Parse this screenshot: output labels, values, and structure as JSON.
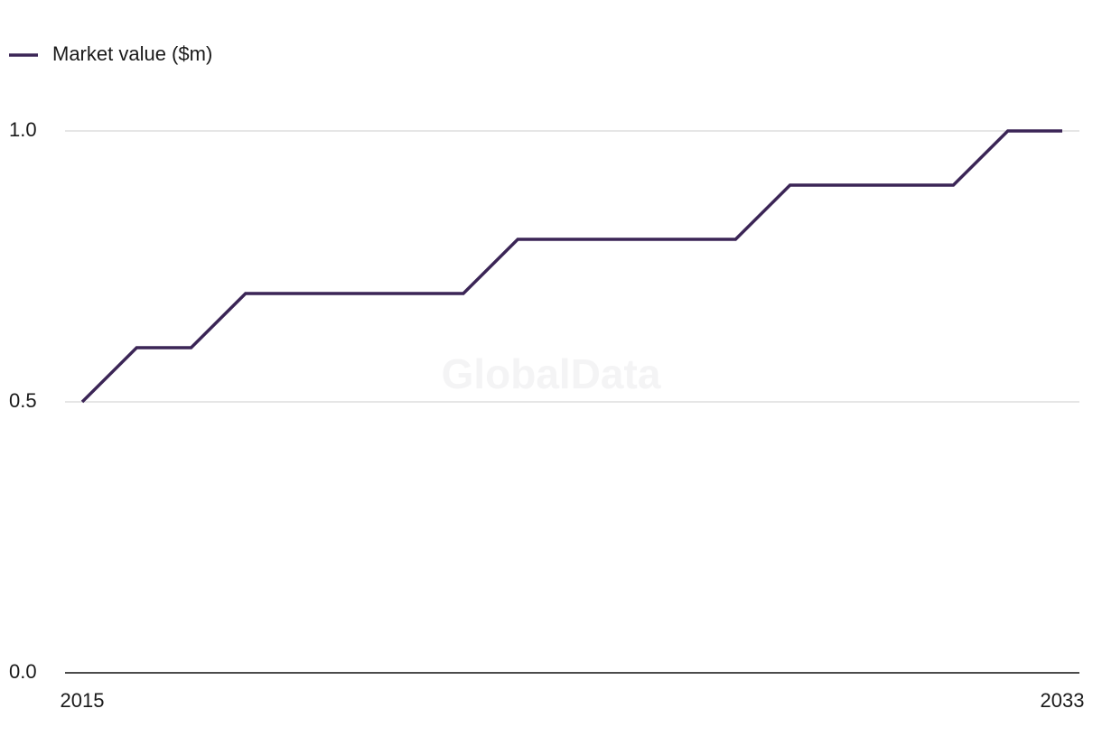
{
  "chart_data": {
    "type": "line",
    "x": [
      2015,
      2016,
      2017,
      2018,
      2019,
      2020,
      2021,
      2022,
      2023,
      2024,
      2025,
      2026,
      2027,
      2028,
      2029,
      2030,
      2031,
      2032,
      2033
    ],
    "series": [
      {
        "name": "Market value ($m)",
        "color": "#3b2556",
        "values": [
          0.5,
          0.6,
          0.6,
          0.7,
          0.7,
          0.7,
          0.7,
          0.7,
          0.8,
          0.8,
          0.8,
          0.8,
          0.8,
          0.9,
          0.9,
          0.9,
          0.9,
          1.0,
          1.0
        ]
      }
    ],
    "xlim": [
      2015,
      2033
    ],
    "xticks": [
      2015,
      2033
    ],
    "ylim": [
      0,
      1
    ],
    "yticks": [
      {
        "value": 0,
        "label": "0.0"
      },
      {
        "value": 0.5,
        "label": "0.5"
      },
      {
        "value": 1,
        "label": "1.0"
      }
    ],
    "grid": true,
    "legend": "top-left",
    "watermark": "GlobalData"
  }
}
